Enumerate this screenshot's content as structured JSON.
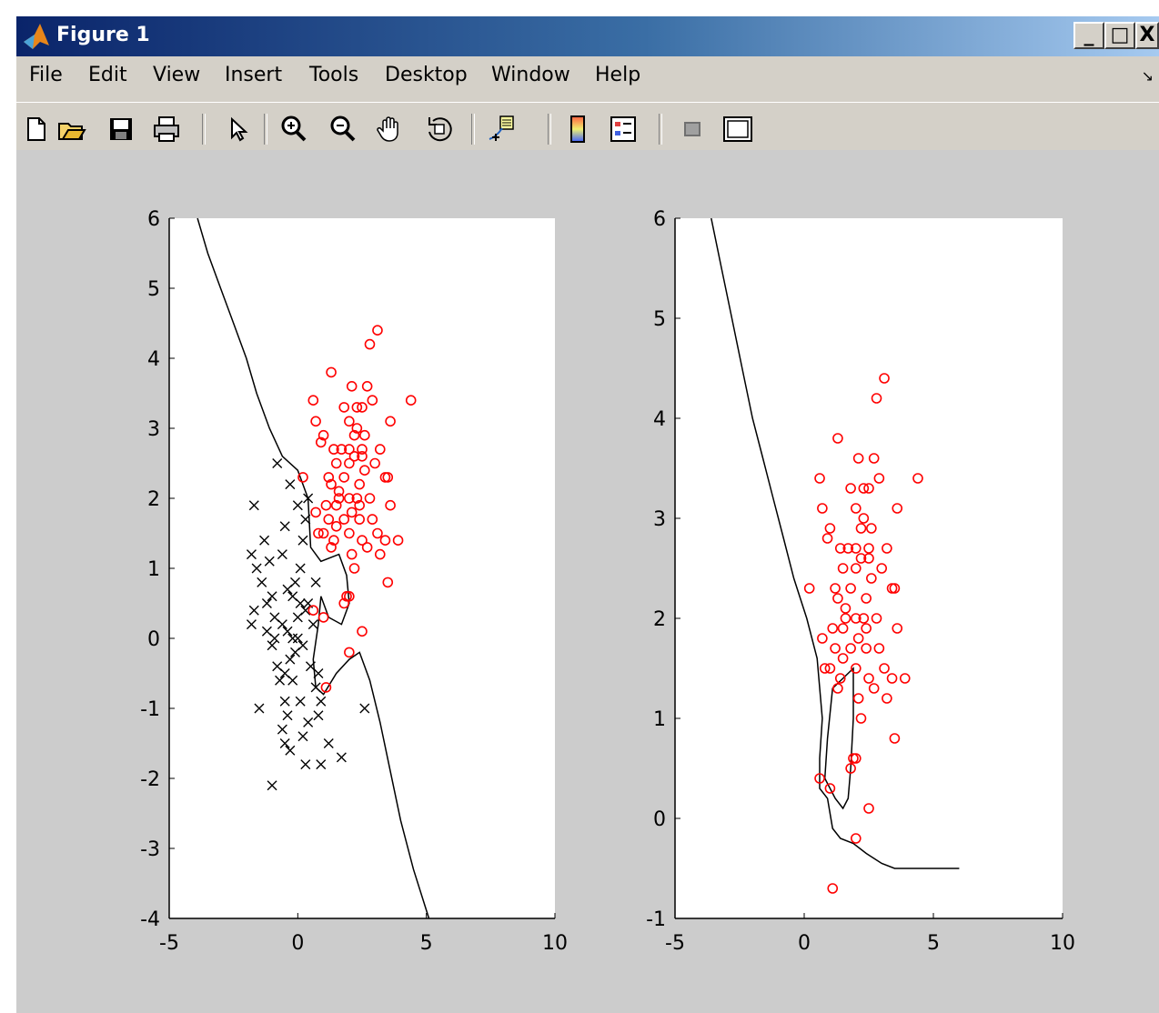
{
  "window": {
    "title": "Figure 1",
    "controls": [
      "_",
      "□",
      "X"
    ]
  },
  "menu": {
    "items": [
      "File",
      "Edit",
      "View",
      "Insert",
      "Tools",
      "Desktop",
      "Window",
      "Help"
    ]
  },
  "toolbar": {
    "buttons": [
      "new-figure",
      "open-file",
      "save",
      "print",
      "edit-plot",
      "zoom-in",
      "zoom-out",
      "pan",
      "rotate-3d",
      "data-cursor",
      "insert-colorbar",
      "insert-legend",
      "hide-plot-tools",
      "show-plot-tools"
    ]
  },
  "colors": {
    "class_a": "#000000",
    "class_b": "#ff0000",
    "boundary": "#000000",
    "figure_bg": "#cccccc"
  },
  "chart_data": [
    {
      "type": "scatter",
      "xlim": [
        -5,
        10
      ],
      "ylim": [
        -4,
        6
      ],
      "xticks": [
        "-5",
        "0",
        "5",
        "10"
      ],
      "yticks": [
        "-4",
        "-3",
        "-2",
        "-1",
        "0",
        "1",
        "2",
        "3",
        "4",
        "5",
        "6"
      ],
      "series": [
        {
          "marker": "x",
          "color": "#000000",
          "points": [
            [
              -0.8,
              2.5
            ],
            [
              -1.7,
              1.9
            ],
            [
              -1.3,
              1.4
            ],
            [
              -1.1,
              1.1
            ],
            [
              -1.8,
              1.2
            ],
            [
              -1.6,
              1.0
            ],
            [
              -1.4,
              0.8
            ],
            [
              -1.2,
              0.5
            ],
            [
              -1.0,
              0.6
            ],
            [
              -0.9,
              0.3
            ],
            [
              -1.7,
              0.4
            ],
            [
              -1.8,
              0.2
            ],
            [
              -1.2,
              0.1
            ],
            [
              -1.0,
              -0.1
            ],
            [
              -0.8,
              -0.4
            ],
            [
              -0.7,
              -0.6
            ],
            [
              -0.5,
              -0.5
            ],
            [
              -0.3,
              -0.3
            ],
            [
              -0.1,
              -0.2
            ],
            [
              0.2,
              -0.1
            ],
            [
              0.0,
              0.3
            ],
            [
              -0.2,
              0.6
            ],
            [
              -0.4,
              0.7
            ],
            [
              -0.1,
              0.8
            ],
            [
              0.1,
              1.0
            ],
            [
              0.2,
              1.4
            ],
            [
              0.3,
              1.7
            ],
            [
              0.0,
              1.9
            ],
            [
              -0.3,
              2.2
            ],
            [
              0.4,
              2.0
            ],
            [
              -0.5,
              1.6
            ],
            [
              -0.6,
              1.2
            ],
            [
              0.4,
              0.5
            ],
            [
              0.6,
              0.2
            ],
            [
              0.5,
              -0.4
            ],
            [
              0.7,
              -0.7
            ],
            [
              0.9,
              -0.9
            ],
            [
              -0.5,
              -0.9
            ],
            [
              -0.4,
              -1.1
            ],
            [
              -0.6,
              -1.3
            ],
            [
              -0.5,
              -1.5
            ],
            [
              -0.3,
              -1.6
            ],
            [
              0.2,
              -1.4
            ],
            [
              0.4,
              -1.2
            ],
            [
              0.8,
              -1.1
            ],
            [
              1.2,
              -1.5
            ],
            [
              1.7,
              -1.7
            ],
            [
              0.9,
              -1.8
            ],
            [
              0.3,
              -1.8
            ],
            [
              -1.0,
              -2.1
            ],
            [
              -1.5,
              -1.0
            ],
            [
              -0.2,
              -0.6
            ],
            [
              0.1,
              -0.9
            ],
            [
              0.8,
              -0.5
            ],
            [
              -0.9,
              0.0
            ],
            [
              -0.4,
              0.1
            ],
            [
              0.0,
              0.0
            ],
            [
              0.3,
              0.4
            ],
            [
              0.7,
              0.8
            ],
            [
              0.1,
              0.5
            ],
            [
              -0.6,
              0.2
            ],
            [
              -0.2,
              0.0
            ],
            [
              2.6,
              -1.0
            ]
          ]
        },
        {
          "marker": "o",
          "color": "#ff0000",
          "points": [
            [
              3.1,
              4.4
            ],
            [
              2.8,
              4.2
            ],
            [
              1.3,
              3.8
            ],
            [
              2.1,
              3.6
            ],
            [
              2.7,
              3.6
            ],
            [
              0.6,
              3.4
            ],
            [
              1.8,
              3.3
            ],
            [
              2.3,
              3.3
            ],
            [
              2.5,
              3.3
            ],
            [
              2.9,
              3.4
            ],
            [
              4.4,
              3.4
            ],
            [
              2.0,
              3.1
            ],
            [
              3.6,
              3.1
            ],
            [
              0.7,
              3.1
            ],
            [
              1.0,
              2.9
            ],
            [
              2.3,
              3.0
            ],
            [
              2.6,
              2.9
            ],
            [
              0.9,
              2.8
            ],
            [
              1.4,
              2.7
            ],
            [
              1.7,
              2.7
            ],
            [
              2.0,
              2.7
            ],
            [
              2.2,
              2.6
            ],
            [
              2.5,
              2.6
            ],
            [
              3.2,
              2.7
            ],
            [
              1.5,
              2.5
            ],
            [
              2.0,
              2.5
            ],
            [
              2.6,
              2.4
            ],
            [
              3.0,
              2.5
            ],
            [
              1.2,
              2.3
            ],
            [
              1.8,
              2.3
            ],
            [
              2.4,
              2.2
            ],
            [
              3.4,
              2.3
            ],
            [
              3.5,
              2.3
            ],
            [
              0.2,
              2.3
            ],
            [
              1.3,
              2.2
            ],
            [
              1.6,
              2.1
            ],
            [
              2.0,
              2.0
            ],
            [
              2.3,
              2.0
            ],
            [
              2.8,
              2.0
            ],
            [
              1.1,
              1.9
            ],
            [
              1.5,
              1.9
            ],
            [
              2.1,
              1.8
            ],
            [
              3.6,
              1.9
            ],
            [
              0.7,
              1.8
            ],
            [
              1.2,
              1.7
            ],
            [
              1.8,
              1.7
            ],
            [
              2.4,
              1.7
            ],
            [
              2.9,
              1.7
            ],
            [
              1.0,
              1.5
            ],
            [
              1.5,
              1.6
            ],
            [
              2.0,
              1.5
            ],
            [
              2.5,
              1.4
            ],
            [
              3.1,
              1.5
            ],
            [
              3.4,
              1.4
            ],
            [
              3.9,
              1.4
            ],
            [
              0.8,
              1.5
            ],
            [
              1.4,
              1.4
            ],
            [
              2.1,
              1.2
            ],
            [
              2.7,
              1.3
            ],
            [
              3.2,
              1.2
            ],
            [
              2.2,
              1.0
            ],
            [
              1.3,
              1.3
            ],
            [
              3.5,
              0.8
            ],
            [
              1.9,
              0.6
            ],
            [
              1.8,
              0.5
            ],
            [
              2.0,
              0.6
            ],
            [
              0.6,
              0.4
            ],
            [
              1.0,
              0.3
            ],
            [
              2.5,
              0.1
            ],
            [
              2.0,
              -0.2
            ],
            [
              1.1,
              -0.7
            ],
            [
              2.2,
              2.9
            ],
            [
              2.5,
              2.7
            ],
            [
              1.6,
              2.0
            ],
            [
              2.4,
              1.9
            ]
          ]
        }
      ],
      "boundary": [
        [
          [
            -3.9,
            6.0
          ],
          [
            -3.5,
            5.5
          ],
          [
            -3.0,
            5.0
          ],
          [
            -2.5,
            4.5
          ],
          [
            -2.0,
            4.0
          ],
          [
            -1.6,
            3.5
          ],
          [
            -1.1,
            3.0
          ],
          [
            -0.6,
            2.6
          ],
          [
            0.0,
            2.4
          ],
          [
            0.4,
            2.0
          ],
          [
            0.5,
            1.3
          ],
          [
            0.9,
            1.1
          ],
          [
            1.6,
            1.2
          ],
          [
            1.9,
            0.9
          ],
          [
            2.0,
            0.5
          ],
          [
            1.7,
            0.2
          ],
          [
            1.2,
            0.3
          ],
          [
            0.9,
            0.6
          ],
          [
            0.8,
            0.2
          ],
          [
            0.6,
            -0.3
          ],
          [
            0.7,
            -0.7
          ],
          [
            1.0,
            -0.8
          ],
          [
            1.5,
            -0.5
          ],
          [
            2.0,
            -0.3
          ],
          [
            2.4,
            -0.2
          ],
          [
            2.8,
            -0.6
          ],
          [
            3.2,
            -1.2
          ],
          [
            3.6,
            -1.9
          ],
          [
            4.0,
            -2.6
          ],
          [
            4.5,
            -3.3
          ],
          [
            5.1,
            -4.0
          ]
        ]
      ]
    },
    {
      "type": "scatter",
      "xlim": [
        -5,
        10
      ],
      "ylim": [
        -1,
        6
      ],
      "xticks": [
        "-5",
        "0",
        "5",
        "10"
      ],
      "yticks": [
        "-1",
        "0",
        "1",
        "2",
        "3",
        "4",
        "5",
        "6"
      ],
      "series": [
        {
          "marker": "o",
          "color": "#ff0000",
          "points": [
            [
              3.1,
              4.4
            ],
            [
              2.8,
              4.2
            ],
            [
              1.3,
              3.8
            ],
            [
              2.1,
              3.6
            ],
            [
              2.7,
              3.6
            ],
            [
              0.6,
              3.4
            ],
            [
              1.8,
              3.3
            ],
            [
              2.3,
              3.3
            ],
            [
              2.5,
              3.3
            ],
            [
              2.9,
              3.4
            ],
            [
              4.4,
              3.4
            ],
            [
              2.0,
              3.1
            ],
            [
              3.6,
              3.1
            ],
            [
              0.7,
              3.1
            ],
            [
              1.0,
              2.9
            ],
            [
              2.3,
              3.0
            ],
            [
              2.6,
              2.9
            ],
            [
              0.9,
              2.8
            ],
            [
              1.4,
              2.7
            ],
            [
              1.7,
              2.7
            ],
            [
              2.0,
              2.7
            ],
            [
              2.2,
              2.6
            ],
            [
              2.5,
              2.6
            ],
            [
              3.2,
              2.7
            ],
            [
              1.5,
              2.5
            ],
            [
              2.0,
              2.5
            ],
            [
              2.6,
              2.4
            ],
            [
              3.0,
              2.5
            ],
            [
              1.2,
              2.3
            ],
            [
              1.8,
              2.3
            ],
            [
              2.4,
              2.2
            ],
            [
              3.4,
              2.3
            ],
            [
              3.5,
              2.3
            ],
            [
              0.2,
              2.3
            ],
            [
              1.3,
              2.2
            ],
            [
              1.6,
              2.1
            ],
            [
              2.0,
              2.0
            ],
            [
              2.3,
              2.0
            ],
            [
              2.8,
              2.0
            ],
            [
              1.1,
              1.9
            ],
            [
              1.5,
              1.9
            ],
            [
              2.1,
              1.8
            ],
            [
              3.6,
              1.9
            ],
            [
              0.7,
              1.8
            ],
            [
              1.2,
              1.7
            ],
            [
              1.8,
              1.7
            ],
            [
              2.4,
              1.7
            ],
            [
              2.9,
              1.7
            ],
            [
              1.0,
              1.5
            ],
            [
              1.5,
              1.6
            ],
            [
              2.0,
              1.5
            ],
            [
              2.5,
              1.4
            ],
            [
              3.1,
              1.5
            ],
            [
              3.4,
              1.4
            ],
            [
              3.9,
              1.4
            ],
            [
              0.8,
              1.5
            ],
            [
              1.4,
              1.4
            ],
            [
              2.1,
              1.2
            ],
            [
              2.7,
              1.3
            ],
            [
              3.2,
              1.2
            ],
            [
              2.2,
              1.0
            ],
            [
              1.3,
              1.3
            ],
            [
              3.5,
              0.8
            ],
            [
              1.9,
              0.6
            ],
            [
              1.8,
              0.5
            ],
            [
              2.0,
              0.6
            ],
            [
              0.6,
              0.4
            ],
            [
              1.0,
              0.3
            ],
            [
              2.5,
              0.1
            ],
            [
              2.0,
              -0.2
            ],
            [
              1.1,
              -0.7
            ],
            [
              2.2,
              2.9
            ],
            [
              2.5,
              2.7
            ],
            [
              1.6,
              2.0
            ],
            [
              2.4,
              1.9
            ]
          ]
        }
      ],
      "boundary": [
        [
          [
            -3.6,
            6.0
          ],
          [
            -3.2,
            5.5
          ],
          [
            -2.8,
            5.0
          ],
          [
            -2.4,
            4.5
          ],
          [
            -2.0,
            4.0
          ],
          [
            -1.6,
            3.6
          ],
          [
            -1.2,
            3.2
          ],
          [
            -0.8,
            2.8
          ],
          [
            -0.4,
            2.4
          ],
          [
            0.1,
            2.0
          ],
          [
            0.5,
            1.6
          ],
          [
            0.7,
            1.0
          ],
          [
            0.6,
            0.6
          ],
          [
            0.6,
            0.3
          ],
          [
            0.9,
            0.2
          ],
          [
            1.1,
            -0.1
          ],
          [
            1.4,
            -0.2
          ],
          [
            1.9,
            -0.25
          ],
          [
            2.4,
            -0.35
          ],
          [
            3.0,
            -0.45
          ],
          [
            3.5,
            -0.5
          ],
          [
            6.0,
            -0.5
          ]
        ],
        [
          [
            0.8,
            0.4
          ],
          [
            0.9,
            0.8
          ],
          [
            1.1,
            1.3
          ],
          [
            1.5,
            1.4
          ],
          [
            1.9,
            1.5
          ],
          [
            1.9,
            1.0
          ],
          [
            1.8,
            0.5
          ],
          [
            1.7,
            0.2
          ],
          [
            1.5,
            0.1
          ],
          [
            1.2,
            0.2
          ],
          [
            0.8,
            0.4
          ]
        ]
      ]
    }
  ]
}
